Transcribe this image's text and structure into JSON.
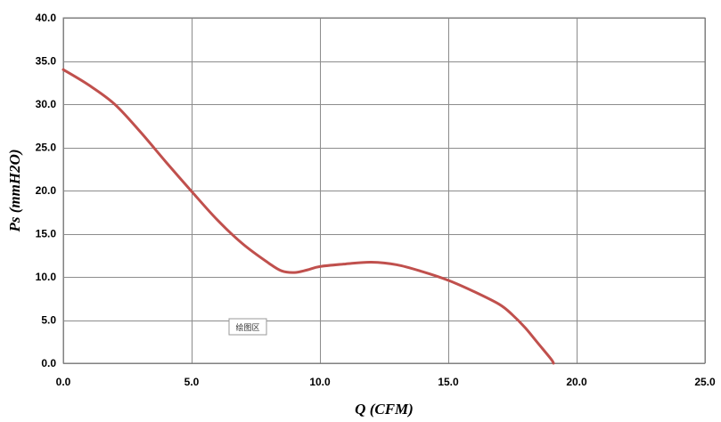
{
  "chart_data": {
    "type": "line",
    "xlabel": "Q (CFM)",
    "ylabel": "Ps (mmH2O)",
    "xlim": [
      0,
      25
    ],
    "ylim": [
      0,
      40
    ],
    "x_ticks": [
      "0.0",
      "5.0",
      "10.0",
      "15.0",
      "20.0",
      "25.0"
    ],
    "y_ticks": [
      "0.0",
      "5.0",
      "10.0",
      "15.0",
      "20.0",
      "25.0",
      "30.0",
      "35.0",
      "40.0"
    ],
    "grid": true,
    "series": [
      {
        "color": "#c0504d",
        "x": [
          0,
          1.0,
          2.0,
          3.0,
          4.0,
          5.0,
          6.0,
          7.0,
          8.0,
          8.5,
          9.0,
          9.5,
          10.0,
          11.0,
          12.0,
          13.0,
          14.0,
          15.0,
          16.0,
          17.0,
          17.5,
          18.0,
          18.5,
          19.0,
          19.1
        ],
        "y": [
          34.0,
          32.2,
          30.0,
          26.8,
          23.3,
          19.9,
          16.6,
          13.8,
          11.6,
          10.7,
          10.5,
          10.8,
          11.2,
          11.5,
          11.7,
          11.4,
          10.6,
          9.6,
          8.3,
          6.8,
          5.6,
          4.1,
          2.3,
          0.5,
          0.0
        ]
      }
    ],
    "annotation": "绘图区"
  }
}
